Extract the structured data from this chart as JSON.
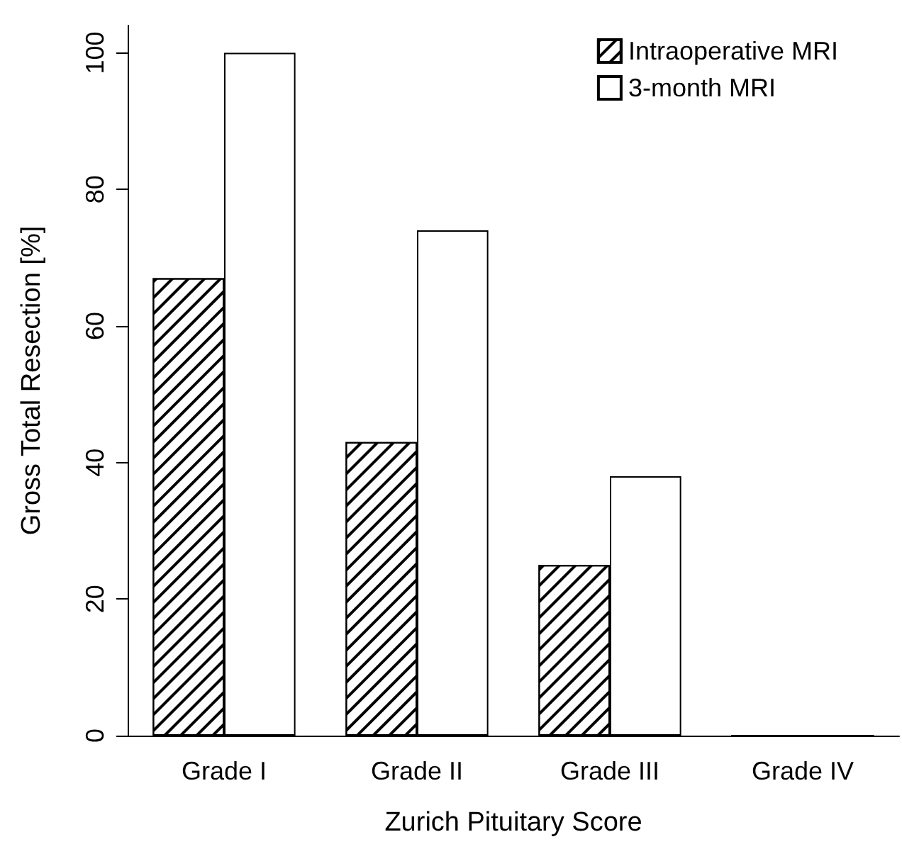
{
  "chart_data": {
    "type": "bar",
    "xlabel": "Zurich Pituitary Score",
    "ylabel": "Gross Total Resection [%]",
    "categories": [
      "Grade I",
      "Grade II",
      "Grade III",
      "Grade IV"
    ],
    "series": [
      {
        "name": "Intraoperative MRI",
        "color": "#ffffff",
        "values": [
          67,
          43,
          25,
          0
        ]
      },
      {
        "name": "3-month MRI",
        "color": "#ffffff",
        "values": [
          100,
          74,
          38,
          0
        ]
      }
    ],
    "ylim": [
      0,
      104
    ],
    "yticks": [
      0,
      20,
      40,
      60,
      80,
      100
    ],
    "grid": false,
    "legend": "top right"
  }
}
